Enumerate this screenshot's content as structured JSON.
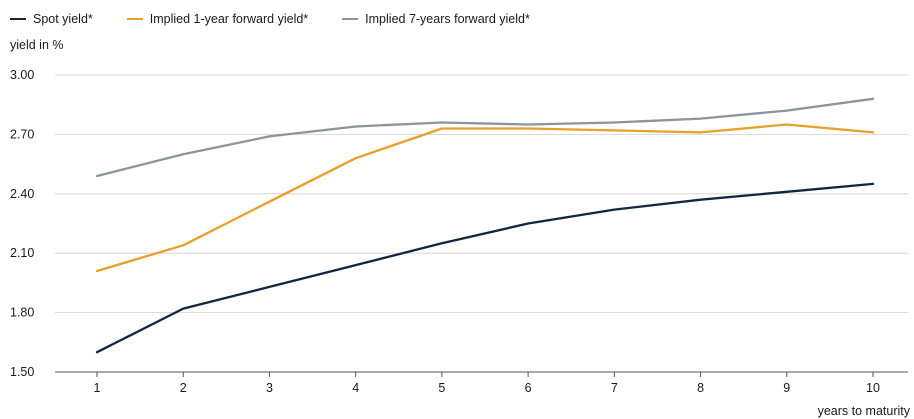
{
  "chart_data": {
    "type": "line",
    "title": "",
    "ylabel": "yield in %",
    "xlabel": "years to maturity",
    "x": [
      1,
      2,
      3,
      4,
      5,
      6,
      7,
      8,
      9,
      10
    ],
    "x_tick_labels": [
      "1",
      "2",
      "3",
      "4",
      "5",
      "6",
      "7",
      "8",
      "9",
      "10"
    ],
    "ylim": [
      1.5,
      3.0
    ],
    "y_ticks": [
      1.5,
      1.8,
      2.1,
      2.4,
      2.7,
      3.0
    ],
    "y_tick_labels": [
      "1.50",
      "1.80",
      "2.10",
      "2.40",
      "2.70",
      "3.00"
    ],
    "grid": "horizontal",
    "legend_position": "top-left",
    "series": [
      {
        "name": "Spot yield*",
        "color": "#14253f",
        "values": [
          1.6,
          1.82,
          1.93,
          2.04,
          2.15,
          2.25,
          2.32,
          2.37,
          2.41,
          2.45
        ]
      },
      {
        "name": "Implied 1-year forward yield*",
        "color": "#e8a02a",
        "values": [
          2.01,
          2.14,
          2.36,
          2.58,
          2.73,
          2.73,
          2.72,
          2.71,
          2.75,
          2.71
        ]
      },
      {
        "name": "Implied 7-years forward yield*",
        "color": "#8c949c",
        "values": [
          2.49,
          2.6,
          2.69,
          2.74,
          2.76,
          2.75,
          2.76,
          2.78,
          2.82,
          2.88
        ]
      }
    ]
  }
}
